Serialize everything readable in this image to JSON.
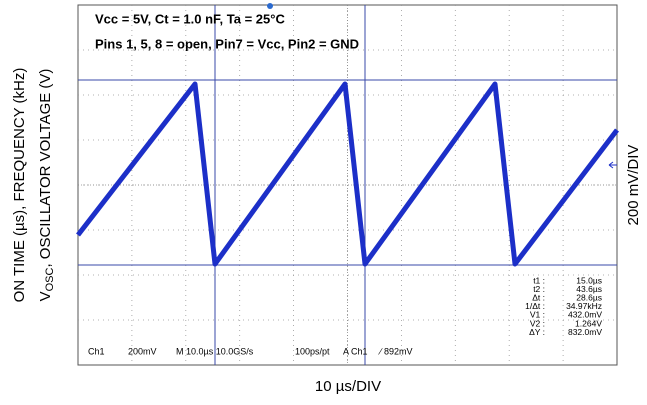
{
  "annotations": [
    "Vcc = 5V, Ct = 1.0 nF, Ta = 25°C",
    "Pins 1, 5, 8 = open, Pin7 = Vcc, Pin2 = GND"
  ],
  "status_bar": [
    "Ch1",
    "200mV",
    "M 10.0µs 10.0GS/s",
    "100ps/pt",
    "A Ch1",
    "∕ 892mV"
  ],
  "measurements": [
    {
      "label": "t1 :",
      "value": "15.0µs"
    },
    {
      "label": "t2 :",
      "value": "43.6µs"
    },
    {
      "label": "Δt :",
      "value": "28.6µs"
    },
    {
      "label": "1/Δt :",
      "value": "34.97kHz"
    },
    {
      "label": "V1 :",
      "value": "432.0mV"
    },
    {
      "label": "V2 :",
      "value": "1.264V"
    },
    {
      "label": "ΔY :",
      "value": "832.0mV"
    }
  ],
  "axis_labels": {
    "left_outer": "ON TIME (µs), FREQUENCY (kHz)",
    "left_inner": {
      "symbol": "V",
      "subscript": "OSC",
      "text": ", OSCILLATOR VOLTAGE (V)"
    },
    "right": "200 mV/DIV",
    "bottom": "10 µs/DIV"
  }
}
